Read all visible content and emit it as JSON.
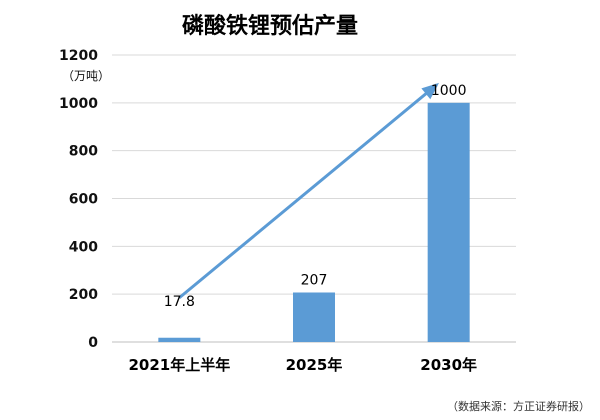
{
  "chart_data": {
    "type": "bar",
    "title": "磷酸铁锂预估产量",
    "unit_label": "（万吨）",
    "categories": [
      "2021年上半年",
      "2025年",
      "2030年"
    ],
    "values": [
      17.8,
      207,
      1000
    ],
    "data_labels": [
      "17.8",
      "207",
      "1000"
    ],
    "ylim": [
      0,
      1200
    ],
    "yticks": [
      0,
      200,
      400,
      600,
      800,
      1000,
      1200
    ],
    "grid": true,
    "bar_color": "#5b9bd5",
    "trend_arrow_color": "#5b9bd5",
    "source": "（数据来源：方正证券研报）"
  }
}
